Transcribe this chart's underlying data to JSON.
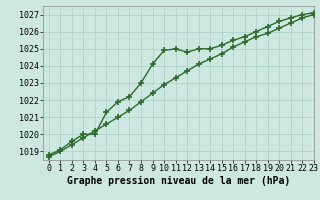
{
  "line1_x": [
    0,
    1,
    2,
    3,
    4,
    5,
    6,
    7,
    8,
    9,
    10,
    11,
    12,
    13,
    14,
    15,
    16,
    17,
    18,
    19,
    20,
    21,
    22,
    23
  ],
  "line1_y": [
    1018.8,
    1019.1,
    1019.6,
    1020.0,
    1020.0,
    1021.3,
    1021.9,
    1022.2,
    1023.0,
    1024.1,
    1024.9,
    1025.0,
    1024.8,
    1025.0,
    1025.0,
    1025.2,
    1025.5,
    1025.7,
    1026.0,
    1026.3,
    1026.6,
    1026.8,
    1027.0,
    1027.1
  ],
  "line2_x": [
    0,
    1,
    2,
    3,
    4,
    5,
    6,
    7,
    8,
    9,
    10,
    11,
    12,
    13,
    14,
    15,
    16,
    17,
    18,
    19,
    20,
    21,
    22,
    23
  ],
  "line2_y": [
    1018.7,
    1019.0,
    1019.4,
    1019.8,
    1020.2,
    1020.6,
    1021.0,
    1021.4,
    1021.9,
    1022.4,
    1022.9,
    1023.3,
    1023.7,
    1024.1,
    1024.4,
    1024.7,
    1025.1,
    1025.4,
    1025.7,
    1025.9,
    1026.2,
    1026.5,
    1026.8,
    1027.0
  ],
  "xlim": [
    -0.5,
    23
  ],
  "ylim": [
    1018.5,
    1027.5
  ],
  "yticks": [
    1019,
    1020,
    1021,
    1022,
    1023,
    1024,
    1025,
    1026,
    1027
  ],
  "xticks": [
    0,
    1,
    2,
    3,
    4,
    5,
    6,
    7,
    8,
    9,
    10,
    11,
    12,
    13,
    14,
    15,
    16,
    17,
    18,
    19,
    20,
    21,
    22,
    23
  ],
  "xlabel": "Graphe pression niveau de la mer (hPa)",
  "line_color": "#2d6a2d",
  "bg_color": "#cce8e0",
  "grid_color": "#aacfc8",
  "marker": "+",
  "markersize": 4,
  "linewidth": 1.0,
  "xlabel_fontsize": 7.0,
  "tick_fontsize": 6.0
}
